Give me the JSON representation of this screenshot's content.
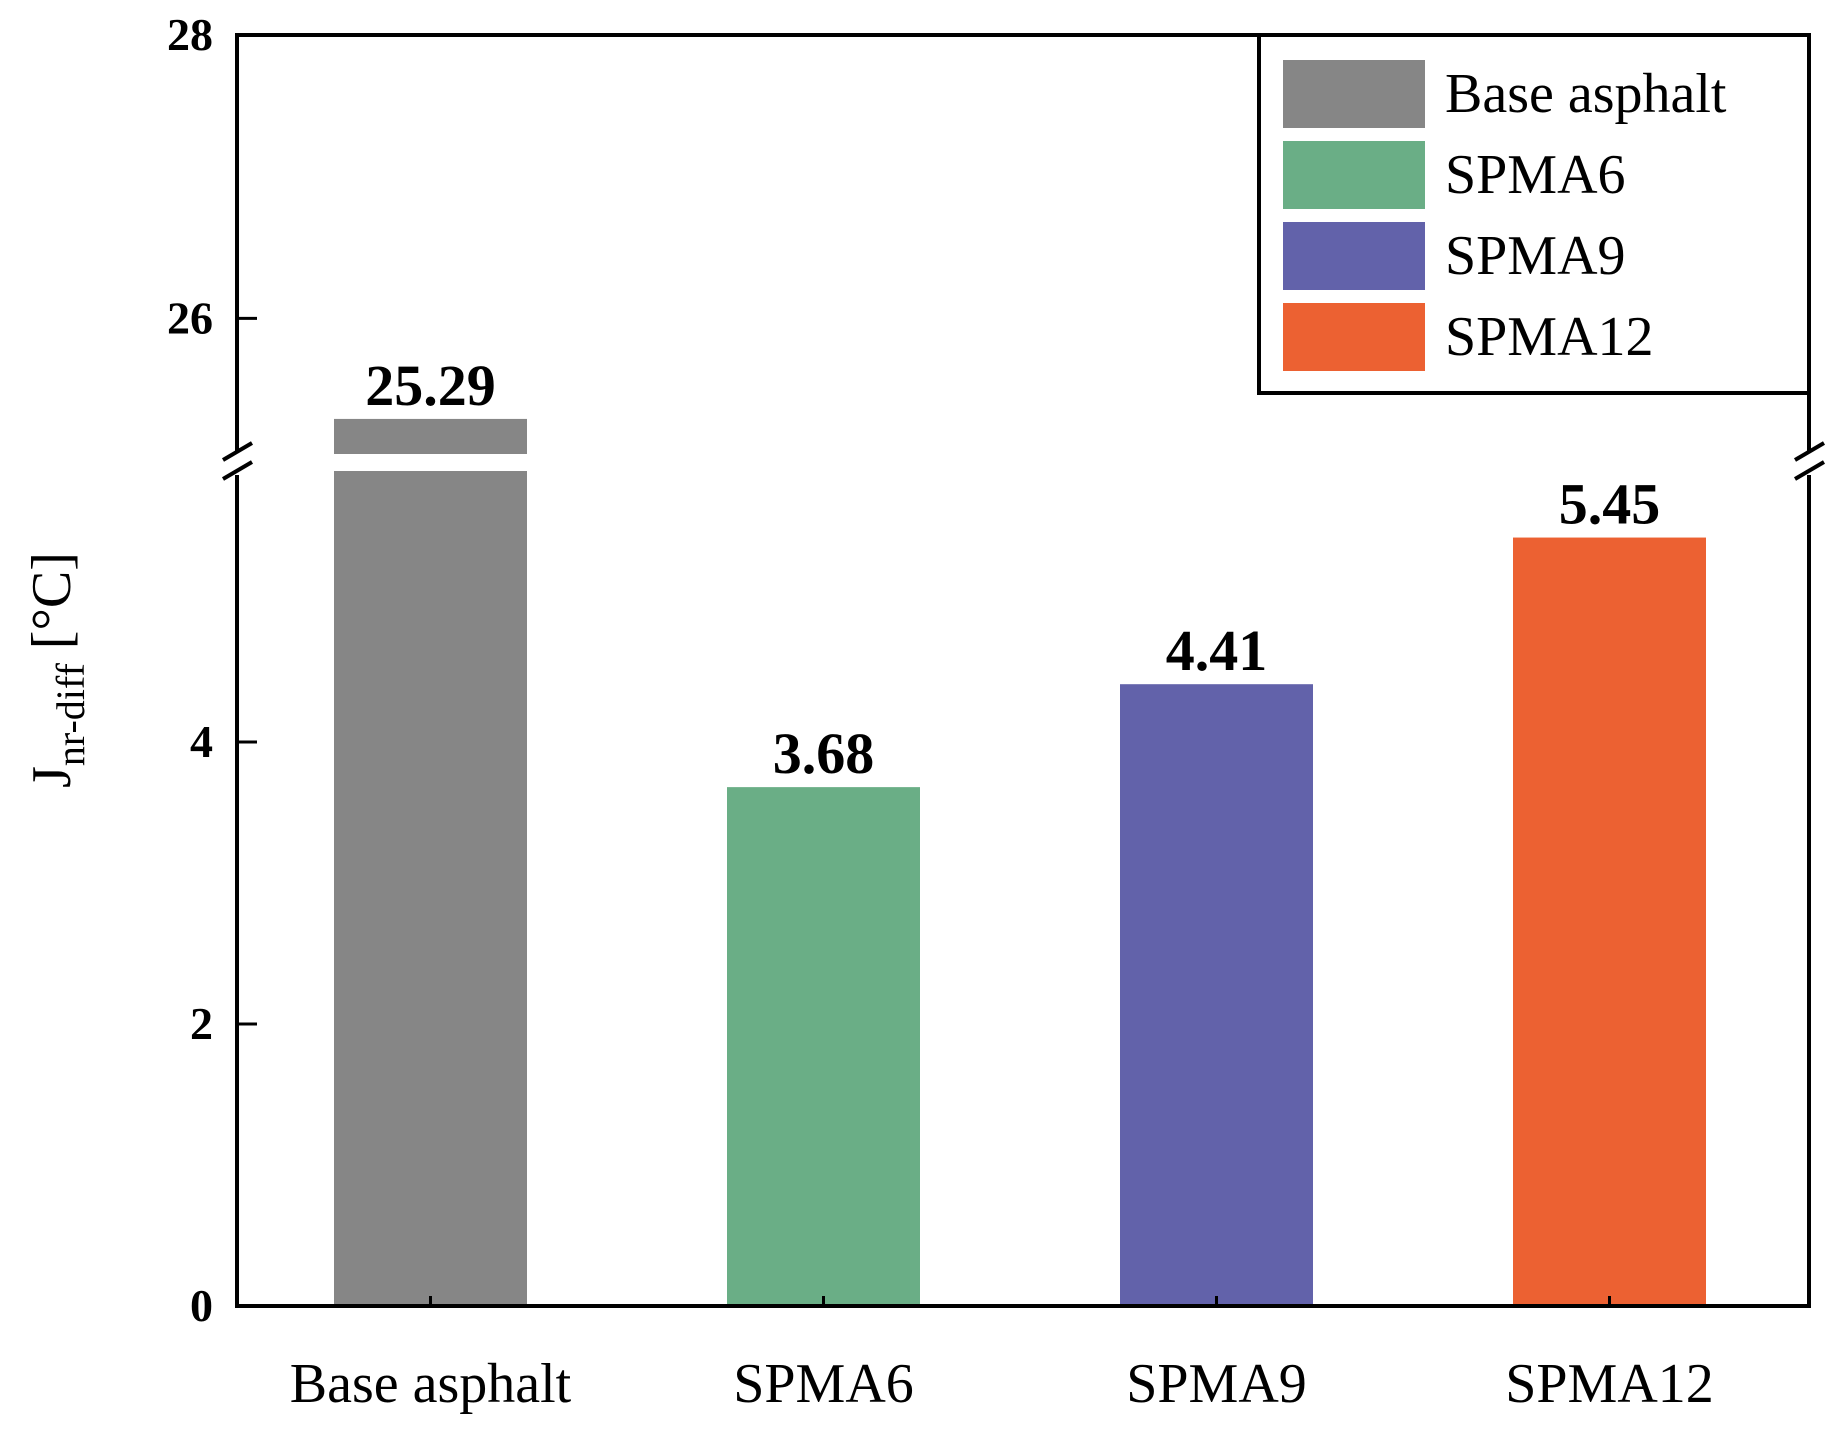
{
  "chart_data": {
    "type": "bar",
    "categories": [
      "Base asphalt",
      "SPMA6",
      "SPMA9",
      "SPMA12"
    ],
    "values": [
      25.29,
      3.68,
      4.41,
      5.45
    ],
    "value_labels": [
      "25.29",
      "3.68",
      "4.41",
      "5.45"
    ],
    "colors": [
      "#868686",
      "#6aae86",
      "#6262aa",
      "#ec6132"
    ],
    "title": "",
    "xlabel": "",
    "ylabel": {
      "main": "J",
      "sub": "nr-diff",
      "unit": " [°C]"
    },
    "axis_break": true,
    "lower_segment": {
      "ylim": [
        0,
        6
      ],
      "ticks": [
        0,
        2,
        4
      ],
      "tick_labels": [
        "0",
        "2",
        "4"
      ]
    },
    "upper_segment": {
      "ylim": [
        25,
        28
      ],
      "ticks": [
        26,
        28
      ],
      "tick_labels": [
        "26",
        "28"
      ]
    },
    "legend": {
      "position": "top-right",
      "entries": [
        "Base asphalt",
        "SPMA6",
        "SPMA9",
        "SPMA12"
      ]
    }
  }
}
